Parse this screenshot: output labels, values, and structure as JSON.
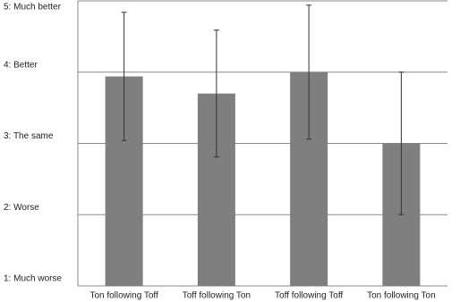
{
  "chart_data": {
    "type": "bar",
    "categories": [
      "Ton following Toff",
      "Toff following Ton",
      "Toff following Toff",
      "Ton following Ton"
    ],
    "values": [
      3.94,
      3.7,
      4.0,
      3.0
    ],
    "errors": [
      0.9,
      0.89,
      0.94,
      1.0
    ],
    "color": "#7f7f7f",
    "ylim": [
      1,
      5
    ],
    "yticks": [
      {
        "value": 1,
        "label": "1: Much worse"
      },
      {
        "value": 2,
        "label": "2: Worse"
      },
      {
        "value": 3,
        "label": "3: The same"
      },
      {
        "value": 4,
        "label": "4: Better"
      },
      {
        "value": 5,
        "label": "5: Much better"
      }
    ],
    "grid": true
  }
}
